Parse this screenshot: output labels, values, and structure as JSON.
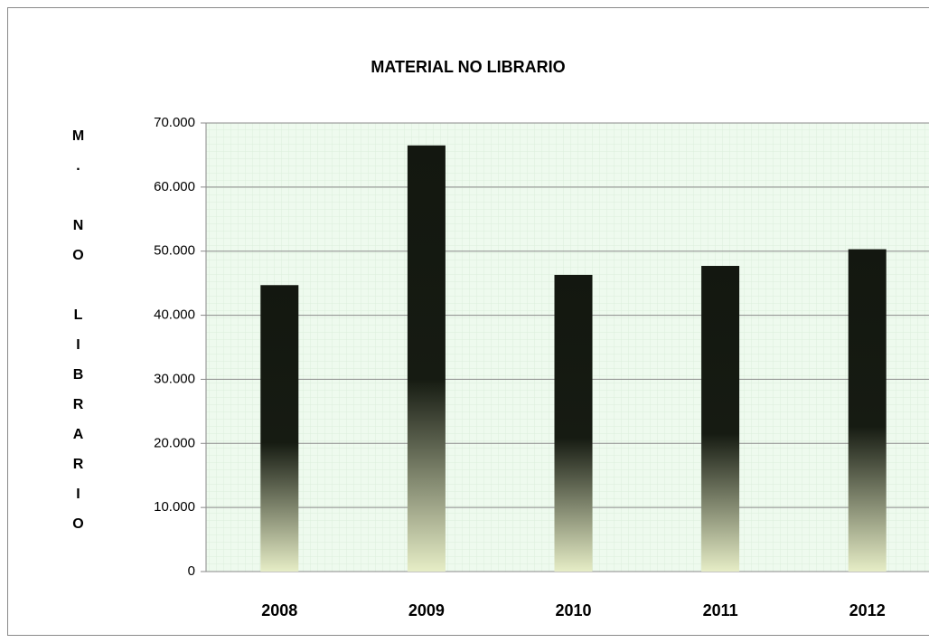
{
  "chart_data": {
    "type": "bar",
    "title": "MATERIAL NO LIBRARIO",
    "y_label": "M. NO LIBRARIO",
    "categories": [
      "2008",
      "2009",
      "2010",
      "2011",
      "2012"
    ],
    "values": [
      44700,
      66500,
      46300,
      47700,
      50300
    ],
    "ylim": [
      0,
      70000
    ],
    "yticks": [
      0,
      {
        "value": 10000,
        "label": "10.000"
      },
      {
        "value": 20000,
        "label": "20.000"
      },
      {
        "value": 30000,
        "label": "30.000"
      },
      {
        "value": 40000,
        "label": "40.000"
      },
      {
        "value": 50000,
        "label": "50.000"
      },
      {
        "value": 60000,
        "label": "60.000"
      },
      {
        "value": 70000,
        "label": "70.000"
      }
    ],
    "grid": true
  }
}
